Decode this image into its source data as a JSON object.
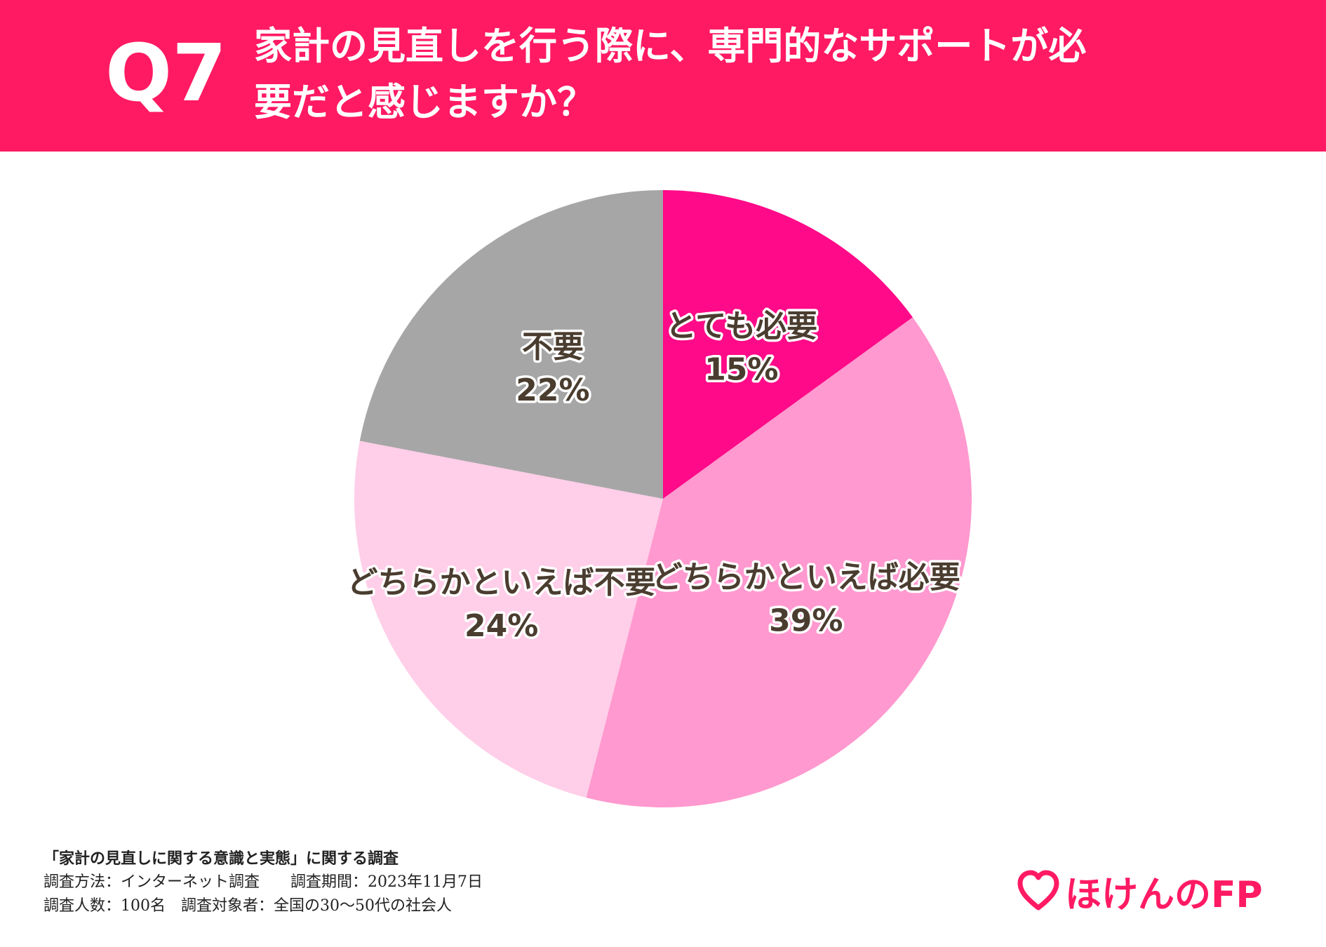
{
  "header": {
    "question_number": "Q7",
    "question_line1": "家計の見直しを行う際に、専門的なサポートが必",
    "question_line2": "要だと感じますか？",
    "color": "#ff1a63"
  },
  "chart_data": {
    "type": "pie",
    "title": "",
    "slices": [
      {
        "label": "とても必要",
        "value": 15,
        "value_text": "15%",
        "color": "#ff0a88"
      },
      {
        "label": "どちらかといえば必要",
        "value": 39,
        "value_text": "39%",
        "color": "#ff99cf"
      },
      {
        "label": "どちらかといえば不要",
        "value": 24,
        "value_text": "24%",
        "color": "#ffcee8"
      },
      {
        "label": "不要",
        "value": 22,
        "value_text": "22%",
        "color": "#a6a6a6"
      }
    ],
    "start_angle": "12 o'clock",
    "direction": "clockwise",
    "legend": "none (labels on slices)"
  },
  "footer": {
    "survey_title": "「家計の見直しに関する意識と実態」に関する調査",
    "line2": "調査方法：インターネット調査　　調査期間：2023年11月7日",
    "line3": "調査人数：100名　調査対象者：全国の30〜50代の社会人"
  },
  "logo": {
    "text": "ほけんのFP",
    "icon": "heart-icon",
    "color": "#ff1a63"
  }
}
